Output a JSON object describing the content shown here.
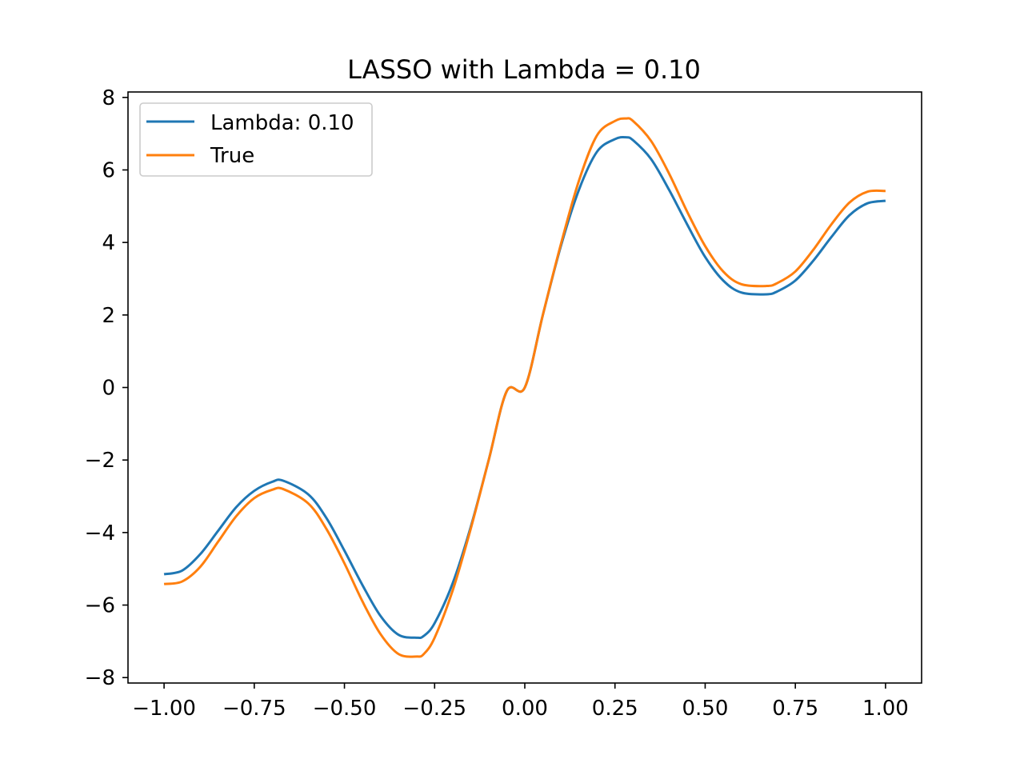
{
  "chart_data": {
    "type": "line",
    "title": "LASSO with Lambda = 0.10",
    "xlabel": "",
    "ylabel": "",
    "xlim": [
      -1.1,
      1.1
    ],
    "ylim": [
      -8.15,
      8.15
    ],
    "xticks": [
      -1.0,
      -0.75,
      -0.5,
      -0.25,
      0.0,
      0.25,
      0.5,
      0.75,
      1.0
    ],
    "xtick_labels": [
      "−1.00",
      "−0.75",
      "−0.50",
      "−0.25",
      "0.00",
      "0.25",
      "0.50",
      "0.75",
      "1.00"
    ],
    "yticks": [
      8,
      6,
      4,
      2,
      0,
      -2,
      -4,
      -6,
      -8
    ],
    "ytick_labels": [
      "8",
      "6",
      "4",
      "2",
      "0",
      "−2",
      "−4",
      "−6",
      "−8"
    ],
    "grid": false,
    "legend": {
      "position": "upper-left",
      "entries": [
        "Lambda: 0.10",
        "True"
      ]
    },
    "series": [
      {
        "name": "Lambda: 0.10",
        "color": "#1f77b4",
        "x": [
          -1.0,
          -0.95,
          -0.9,
          -0.85,
          -0.8,
          -0.75,
          -0.7,
          -0.67,
          -0.6,
          -0.55,
          -0.5,
          -0.45,
          -0.4,
          -0.35,
          -0.3,
          -0.28,
          -0.25,
          -0.2,
          -0.15,
          -0.1,
          -0.05,
          0.0,
          0.05,
          0.1,
          0.15,
          0.2,
          0.25,
          0.28,
          0.3,
          0.35,
          0.4,
          0.45,
          0.5,
          0.55,
          0.6,
          0.67,
          0.7,
          0.75,
          0.8,
          0.85,
          0.9,
          0.95,
          1.0
        ],
        "y": [
          -5.15,
          -5.05,
          -4.6,
          -3.95,
          -3.3,
          -2.85,
          -2.6,
          -2.57,
          -2.95,
          -3.6,
          -4.5,
          -5.45,
          -6.3,
          -6.82,
          -6.9,
          -6.85,
          -6.5,
          -5.4,
          -3.85,
          -2.0,
          -0.1,
          0.0,
          2.0,
          3.9,
          5.45,
          6.5,
          6.85,
          6.9,
          6.82,
          6.3,
          5.45,
          4.5,
          3.6,
          2.95,
          2.62,
          2.57,
          2.65,
          2.95,
          3.5,
          4.15,
          4.75,
          5.08,
          5.15
        ]
      },
      {
        "name": "True",
        "color": "#ff7f0e",
        "x": [
          -1.0,
          -0.95,
          -0.9,
          -0.85,
          -0.8,
          -0.75,
          -0.7,
          -0.67,
          -0.6,
          -0.55,
          -0.5,
          -0.45,
          -0.4,
          -0.35,
          -0.3,
          -0.28,
          -0.25,
          -0.2,
          -0.15,
          -0.1,
          -0.05,
          0.0,
          0.05,
          0.1,
          0.15,
          0.2,
          0.25,
          0.28,
          0.3,
          0.35,
          0.4,
          0.45,
          0.5,
          0.55,
          0.6,
          0.67,
          0.7,
          0.75,
          0.8,
          0.85,
          0.9,
          0.95,
          1.0
        ],
        "y": [
          -5.42,
          -5.35,
          -4.95,
          -4.25,
          -3.55,
          -3.05,
          -2.82,
          -2.8,
          -3.2,
          -3.9,
          -4.85,
          -5.9,
          -6.8,
          -7.35,
          -7.42,
          -7.35,
          -6.9,
          -5.6,
          -3.9,
          -2.0,
          -0.1,
          0.0,
          2.0,
          3.95,
          5.7,
          6.95,
          7.35,
          7.42,
          7.35,
          6.8,
          5.9,
          4.85,
          3.9,
          3.2,
          2.85,
          2.8,
          2.88,
          3.2,
          3.8,
          4.5,
          5.1,
          5.4,
          5.42
        ]
      }
    ]
  }
}
